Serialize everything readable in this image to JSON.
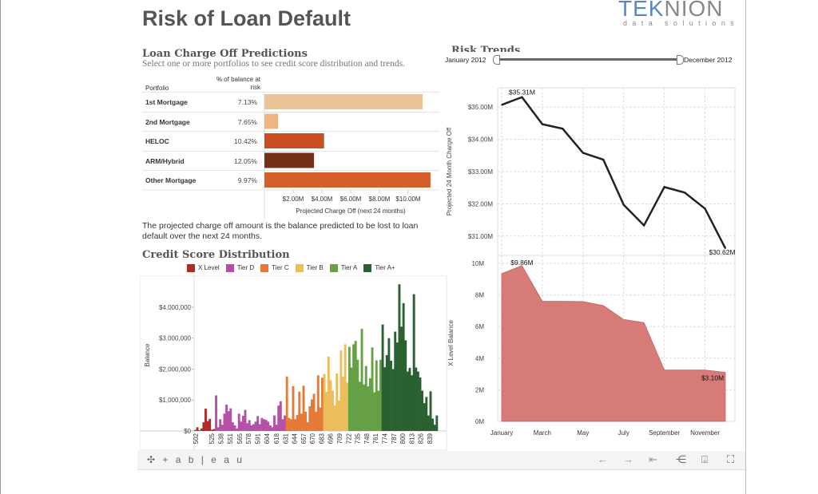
{
  "header": {
    "title": "Risk of Loan Default",
    "logo_main": "TEKNION",
    "logo_sub": "data solutions"
  },
  "predictions": {
    "title": "Loan Charge Off Predictions",
    "subtitle": "Select one or more portfolios to see credit score distribution and trends.",
    "col_portfolio": "Portfolio",
    "col_pct_line1": "% of balance at",
    "col_pct_line2": "risk",
    "note": "The projected charge off amount is the balance predicted to be lost to loan default over the next 24 months."
  },
  "risk_trends": {
    "title": "Risk Trends",
    "slider": {
      "start_label": "January 2012",
      "end_label": "December 2012",
      "start_fraction": 0,
      "end_fraction": 1
    }
  },
  "credit": {
    "title": "Credit Score Distribution"
  },
  "toolbar": {
    "brand": "+ a b | e a u",
    "icons": [
      "undo-icon",
      "redo-icon",
      "revert-icon",
      "share-icon",
      "download-icon",
      "fullscreen-icon"
    ]
  },
  "chart_data": [
    {
      "type": "bar",
      "orientation": "horizontal",
      "categories": [
        "1st Mortgage",
        "2nd Mortgage",
        "HELOC",
        "ARM/Hybrid",
        "Other Mortgage"
      ],
      "pct_at_risk": [
        "7.13%",
        "7.65%",
        "10.42%",
        "12.05%",
        "9.97%"
      ],
      "values": [
        11.0,
        0.95,
        4.15,
        3.45,
        11.55
      ],
      "colors": [
        "#e9c49a",
        "#efb47f",
        "#c94f23",
        "#73311a",
        "#d65e2b"
      ],
      "xlabel": "Projected Charge Off (next 24 months)",
      "xticks": [
        "$2.00M",
        "$4.00M",
        "$6.00M",
        "$8.00M",
        "$10.00M"
      ],
      "xtick_values": [
        2,
        4,
        6,
        8,
        10
      ],
      "xlim": [
        0,
        12
      ]
    },
    {
      "type": "line",
      "x": [
        "Jan",
        "Feb",
        "Mar",
        "Apr",
        "May",
        "Jun",
        "Jul",
        "Aug",
        "Sep",
        "Oct",
        "Nov",
        "Dec"
      ],
      "values": [
        35.07,
        35.31,
        34.47,
        34.33,
        33.58,
        33.37,
        31.97,
        31.33,
        32.52,
        32.35,
        31.85,
        30.62
      ],
      "ylabel": "Projected 24 Month Charge Off",
      "yticks": [
        "$35.00M",
        "$34.00M",
        "$33.00M",
        "$32.00M",
        "$31.00M"
      ],
      "ytick_values": [
        35,
        34,
        33,
        32,
        31
      ],
      "ylim": [
        30.4,
        35.6
      ],
      "labels": [
        {
          "index": 1,
          "text": "$35.31M"
        },
        {
          "index": 11,
          "text": "$30.62M"
        }
      ],
      "color": "#222222",
      "grid": true
    },
    {
      "type": "area",
      "x": [
        "Jan",
        "Feb",
        "Mar",
        "Apr",
        "May",
        "Jun",
        "Jul",
        "Aug",
        "Sep",
        "Oct",
        "Nov",
        "Dec"
      ],
      "values": [
        9.35,
        9.86,
        7.6,
        7.6,
        7.58,
        7.33,
        6.45,
        6.25,
        3.25,
        3.25,
        3.25,
        3.1
      ],
      "ylabel": "X Level Balance",
      "yticks": [
        "10M",
        "8M",
        "6M",
        "4M",
        "2M",
        "0M"
      ],
      "ytick_values": [
        10,
        8,
        6,
        4,
        2,
        0
      ],
      "ylim": [
        0,
        10
      ],
      "xticks": [
        "January",
        "March",
        "May",
        "July",
        "September",
        "November"
      ],
      "xtick_indices": [
        0,
        2,
        4,
        6,
        8,
        10
      ],
      "labels": [
        {
          "index": 1,
          "text": "$9.86M"
        },
        {
          "index": 11,
          "text": "$3.10M"
        }
      ],
      "color": "#d77b78",
      "grid": true
    },
    {
      "type": "bar",
      "title": "Credit Score Distribution",
      "ylabel": "Balance",
      "yticks": [
        "$4,000,000",
        "$3,000,000",
        "$2,000,000",
        "$1,000,000",
        "$0"
      ],
      "ytick_values": [
        4000,
        3000,
        2000,
        1000,
        0
      ],
      "value_unit": "thousands USD",
      "ylim": [
        0,
        4900
      ],
      "bin_width": 3,
      "xrange": [
        500,
        851
      ],
      "xticks": [
        "502",
        "525",
        "538",
        "551",
        "565",
        "578",
        "591",
        "604",
        "618",
        "631",
        "644",
        "657",
        "670",
        "683",
        "696",
        "709",
        "722",
        "735",
        "748",
        "761",
        "774",
        "787",
        "800",
        "813",
        "826",
        "839"
      ],
      "series": [
        {
          "name": "X Level",
          "color": "#b22a26",
          "start": 500,
          "values": [
            30,
            120,
            20,
            80,
            280,
            720,
            320,
            390,
            40,
            60
          ]
        },
        {
          "name": "Tier D",
          "color": "#b450a7",
          "start": 530,
          "values": [
            1150,
            120,
            380,
            200,
            560,
            850,
            640,
            730,
            280,
            180,
            80,
            560,
            300,
            490,
            680,
            250,
            350,
            180,
            220,
            300,
            480,
            220,
            420,
            380,
            360,
            300,
            180,
            120,
            500,
            200,
            820,
            960,
            380,
            500
          ]
        },
        {
          "name": "Tier C",
          "color": "#e57a36",
          "start": 632,
          "values": [
            1760,
            420,
            380,
            1450,
            380,
            520,
            1270,
            560,
            1460,
            620,
            280,
            800,
            1020,
            1200,
            620,
            1800,
            760,
            1720
          ]
        },
        {
          "name": "Tier B",
          "color": "#ebbe5b",
          "start": 686,
          "values": [
            1840,
            1260,
            2400,
            1640,
            1300,
            820,
            1860,
            980,
            2600,
            1750,
            2800,
            1560
          ]
        },
        {
          "name": "Tier A",
          "color": "#65a045",
          "start": 722,
          "values": [
            2720,
            2050,
            2800,
            2910,
            2300,
            1590,
            3300,
            1500,
            2100,
            1440,
            1700,
            2700,
            1250,
            2280,
            1300,
            2300
          ]
        },
        {
          "name": "Tier A+",
          "color": "#2b6131",
          "start": 770,
          "values": [
            3440,
            2060,
            2450,
            3000,
            2270,
            2000,
            3210,
            2860,
            4740,
            3370,
            4130,
            2930,
            1920,
            2040,
            1800,
            4420,
            2050,
            1920,
            1730,
            1300,
            900,
            1100,
            500,
            1280,
            400,
            200,
            500
          ]
        }
      ]
    }
  ]
}
